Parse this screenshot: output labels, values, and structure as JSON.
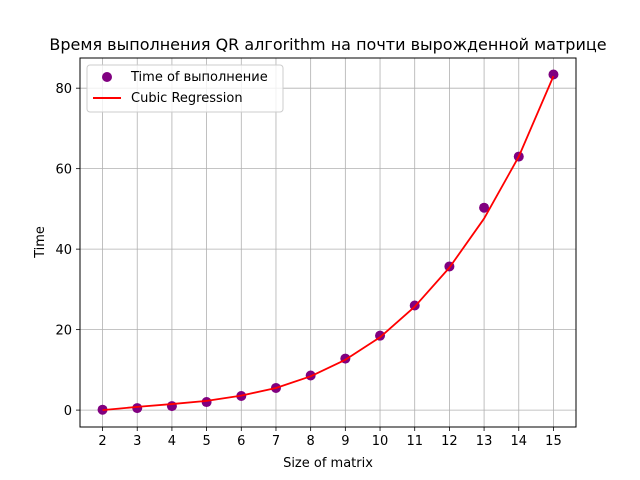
{
  "chart_data": {
    "type": "scatter",
    "title": "Время выполнения QR алгоrithm на почти вырожденной матрице",
    "xlabel": "Size of matrix",
    "ylabel": "Time",
    "xlim": [
      1.35,
      15.65
    ],
    "ylim": [
      -4.2,
      87.5
    ],
    "x_ticks": [
      2,
      3,
      4,
      5,
      6,
      7,
      8,
      9,
      10,
      11,
      12,
      13,
      14,
      15
    ],
    "y_ticks": [
      0,
      20,
      40,
      60,
      80
    ],
    "grid": true,
    "legend_position": "top-left",
    "series": [
      {
        "name": "Time of выполнение",
        "kind": "scatter",
        "color": "#800080",
        "x": [
          2,
          3,
          4,
          5,
          6,
          7,
          8,
          9,
          10,
          11,
          12,
          13,
          14,
          15
        ],
        "y": [
          0.1,
          0.5,
          1.0,
          2.0,
          3.5,
          5.5,
          8.6,
          12.8,
          18.5,
          26.0,
          35.7,
          50.3,
          63.0,
          83.4
        ]
      },
      {
        "name": "Cubic Regression",
        "kind": "line",
        "color": "#ff0000",
        "x": [
          2,
          3,
          4,
          5,
          6,
          7,
          8,
          9,
          10,
          11,
          12,
          13,
          14,
          15
        ],
        "y": [
          0.0,
          0.8,
          1.5,
          2.3,
          3.6,
          5.5,
          8.4,
          12.5,
          18.1,
          25.7,
          35.4,
          47.6,
          63.0,
          83.0
        ]
      }
    ]
  }
}
